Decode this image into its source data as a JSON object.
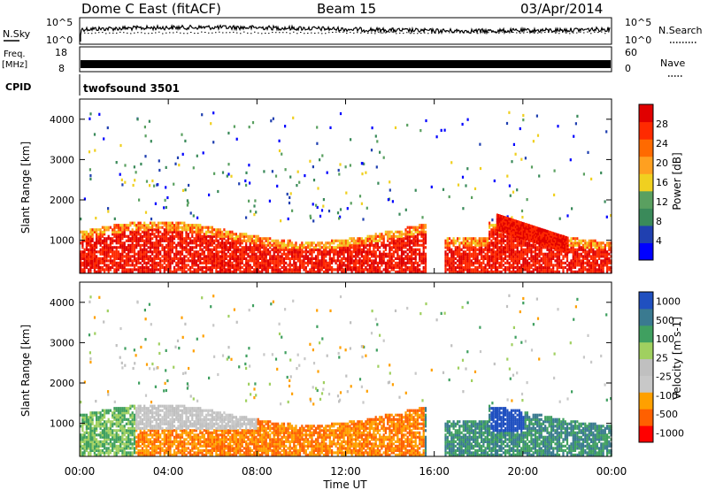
{
  "header": {
    "station": "Dome C East (fitACF)",
    "beam": "Beam 15",
    "date": "03/Apr/2014"
  },
  "noise": {
    "left_label": "N.Sky",
    "right_label": "N.Search",
    "ticks_left": [
      "10^5",
      "10^0"
    ],
    "ticks_right": [
      "10^5",
      "10^0"
    ]
  },
  "freq": {
    "left_label_1": "Freq.",
    "left_label_2": "[MHz]",
    "ticks_left": [
      "18",
      "8"
    ],
    "right_label": "Nave",
    "ticks_right": [
      "60",
      "0"
    ]
  },
  "cpid": {
    "label": "CPID",
    "program": "twofsound 3501"
  },
  "colors": {
    "power": [
      "#0000ff",
      "#2040b0",
      "#3a8a5a",
      "#5aa060",
      "#f0d020",
      "#ffa020",
      "#ff6a00",
      "#ff2a00",
      "#e00000"
    ],
    "velocity": [
      "#ff0000",
      "#ff6000",
      "#ffa000",
      "#c8c8c8",
      "#c0c0c0",
      "#a0d060",
      "#40a060",
      "#3a7a90",
      "#2050c0"
    ],
    "ground_scatter": "#c0c0c0"
  },
  "chart_data": [
    {
      "type": "heatmap",
      "title": "Power",
      "ylabel": "Slant Range [km]",
      "xlabel": "Time UT",
      "x_ticks": [
        "00:00",
        "04:00",
        "08:00",
        "12:00",
        "16:00",
        "20:00",
        "00:00"
      ],
      "xlim": [
        0,
        24
      ],
      "y_ticks": [
        "1000",
        "2000",
        "3000",
        "4000"
      ],
      "ylim": [
        180,
        4500
      ],
      "colorbar": {
        "label": "Power [dB]",
        "ticks": [
          "4",
          "8",
          "12",
          "16",
          "20",
          "24",
          "28"
        ],
        "range": [
          0,
          32
        ]
      }
    },
    {
      "type": "heatmap",
      "title": "Velocity",
      "ylabel": "Slant Range [km]",
      "xlabel": "Time UT",
      "x_ticks": [
        "00:00",
        "04:00",
        "08:00",
        "12:00",
        "16:00",
        "20:00",
        "00:00"
      ],
      "xlim": [
        0,
        24
      ],
      "y_ticks": [
        "1000",
        "2000",
        "3000",
        "4000"
      ],
      "ylim": [
        180,
        4500
      ],
      "colorbar": {
        "label": "Velocity [m s-1]",
        "ticks": [
          "1000",
          "500",
          "100",
          "25",
          "-25",
          "-100",
          "-500",
          "-1000"
        ]
      }
    }
  ]
}
